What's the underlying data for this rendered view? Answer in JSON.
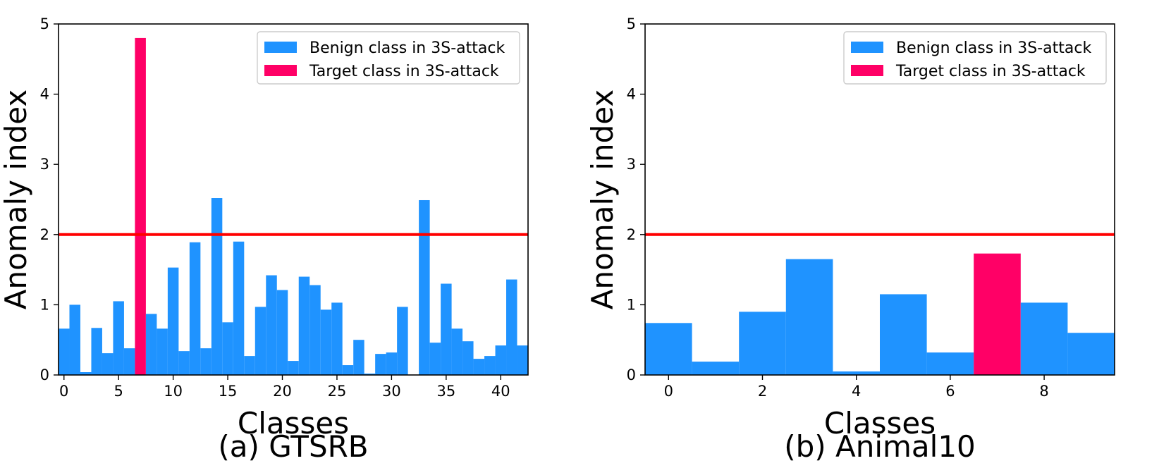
{
  "chart_data": [
    {
      "type": "bar",
      "caption": "(a) GTSRB",
      "xlabel": "Classes",
      "ylabel": "Anomaly index",
      "xlim": [
        -0.5,
        42.5
      ],
      "ylim": [
        0,
        5
      ],
      "xticks": [
        0,
        5,
        10,
        15,
        20,
        25,
        30,
        35,
        40
      ],
      "yticks": [
        0,
        1,
        2,
        3,
        4,
        5
      ],
      "threshold": 2,
      "threshold_color": "#ff0000",
      "target_class": 7,
      "legend_position": "upper right",
      "series": [
        {
          "name": "Benign class in 3S-attack",
          "color": "#1f93ff"
        },
        {
          "name": "Target class in 3S-attack",
          "color": "#ff0066"
        }
      ],
      "x": [
        0,
        1,
        2,
        3,
        4,
        5,
        6,
        7,
        8,
        9,
        10,
        11,
        12,
        13,
        14,
        15,
        16,
        17,
        18,
        19,
        20,
        21,
        22,
        23,
        24,
        25,
        26,
        27,
        28,
        29,
        30,
        31,
        32,
        33,
        34,
        35,
        36,
        37,
        38,
        39,
        40,
        41,
        42
      ],
      "values": [
        0.66,
        1.0,
        0.04,
        0.67,
        0.31,
        1.05,
        0.38,
        4.8,
        0.87,
        0.66,
        1.53,
        0.34,
        1.89,
        0.38,
        2.52,
        0.75,
        1.9,
        0.27,
        0.97,
        1.42,
        1.21,
        0.2,
        1.4,
        1.28,
        0.93,
        1.03,
        0.14,
        0.5,
        0.02,
        0.3,
        0.32,
        0.97,
        0.0,
        2.49,
        0.46,
        1.3,
        0.66,
        0.48,
        0.23,
        0.27,
        0.42,
        1.36,
        0.42
      ]
    },
    {
      "type": "bar",
      "caption": "(b) Animal10",
      "xlabel": "Classes",
      "ylabel": "Anomaly index",
      "xlim": [
        -0.5,
        9.5
      ],
      "ylim": [
        0,
        5
      ],
      "xticks": [
        0,
        2,
        4,
        6,
        8
      ],
      "yticks": [
        0,
        1,
        2,
        3,
        4,
        5
      ],
      "threshold": 2,
      "threshold_color": "#ff0000",
      "target_class": 7,
      "legend_position": "upper right",
      "series": [
        {
          "name": "Benign class in 3S-attack",
          "color": "#1f93ff"
        },
        {
          "name": "Target class in 3S-attack",
          "color": "#ff0066"
        }
      ],
      "x": [
        0,
        1,
        2,
        3,
        4,
        5,
        6,
        7,
        8,
        9
      ],
      "values": [
        0.74,
        0.19,
        0.9,
        1.65,
        0.05,
        1.15,
        0.32,
        1.73,
        1.03,
        0.6
      ]
    }
  ]
}
